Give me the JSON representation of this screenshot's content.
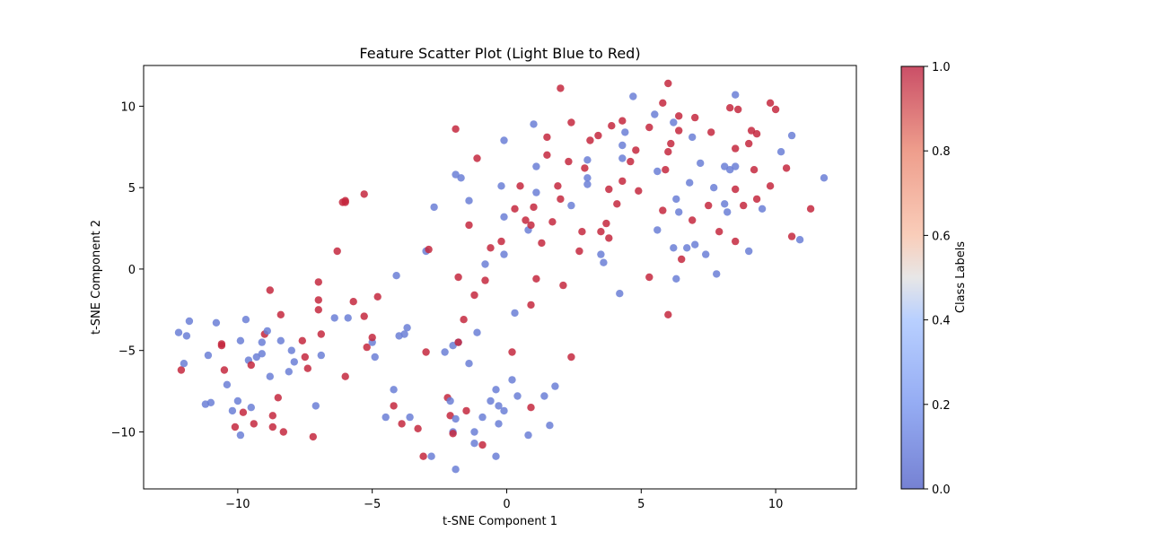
{
  "chart_data": {
    "type": "scatter",
    "title": "Feature Scatter Plot (Light Blue to Red)",
    "xlabel": "t-SNE Component 1",
    "ylabel": "t-SNE Component 2",
    "xlim": [
      -13.5,
      13
    ],
    "ylim": [
      -13.5,
      12.5
    ],
    "xticks": [
      -10,
      -5,
      0,
      5,
      10
    ],
    "yticks": [
      -10,
      -5,
      0,
      5,
      10
    ],
    "xtick_labels": [
      "−10",
      "−5",
      "0",
      "5",
      "10"
    ],
    "ytick_labels": [
      "−10",
      "−5",
      "0",
      "5",
      "10"
    ],
    "grid": false,
    "colormap": "coolwarm",
    "colors": {
      "class_0": "#6b7fd6",
      "class_1": "#c4283e"
    },
    "colorbar": {
      "label": "Class Labels",
      "range": [
        0.0,
        1.0
      ],
      "ticks": [
        "0.0",
        "0.2",
        "0.4",
        "0.6",
        "0.8",
        "1.0"
      ]
    },
    "points": [
      [
        -12.2,
        -3.9,
        0
      ],
      [
        -12.1,
        -6.2,
        1
      ],
      [
        -12.0,
        -5.8,
        0
      ],
      [
        -11.9,
        -4.1,
        0
      ],
      [
        -11.8,
        -3.2,
        0
      ],
      [
        -11.2,
        -8.3,
        0
      ],
      [
        -11.1,
        -5.3,
        0
      ],
      [
        -11.0,
        -8.2,
        0
      ],
      [
        -10.8,
        -3.3,
        0
      ],
      [
        -10.6,
        -4.7,
        1
      ],
      [
        -10.6,
        -4.6,
        1
      ],
      [
        -10.5,
        -6.2,
        1
      ],
      [
        -10.4,
        -7.1,
        0
      ],
      [
        -10.2,
        -8.7,
        0
      ],
      [
        -10.1,
        -9.7,
        1
      ],
      [
        -10.0,
        -8.1,
        0
      ],
      [
        -9.9,
        -4.4,
        0
      ],
      [
        -9.9,
        -10.2,
        0
      ],
      [
        -9.8,
        -8.8,
        1
      ],
      [
        -9.7,
        -3.1,
        0
      ],
      [
        -9.6,
        -5.6,
        0
      ],
      [
        -9.5,
        -8.5,
        0
      ],
      [
        -9.5,
        -5.9,
        1
      ],
      [
        -9.4,
        -9.5,
        1
      ],
      [
        -9.3,
        -5.4,
        0
      ],
      [
        -9.1,
        -5.2,
        0
      ],
      [
        -9.1,
        -4.5,
        0
      ],
      [
        -9.0,
        -4.0,
        1
      ],
      [
        -8.9,
        -3.8,
        0
      ],
      [
        -8.8,
        -1.3,
        1
      ],
      [
        -8.8,
        -6.6,
        0
      ],
      [
        -8.7,
        -9.0,
        1
      ],
      [
        -8.7,
        -9.7,
        1
      ],
      [
        -8.5,
        -7.9,
        1
      ],
      [
        -8.4,
        -4.4,
        0
      ],
      [
        -8.4,
        -2.8,
        1
      ],
      [
        -8.3,
        -10.0,
        1
      ],
      [
        -8.1,
        -6.3,
        0
      ],
      [
        -8.0,
        -5.0,
        0
      ],
      [
        -7.9,
        -5.7,
        0
      ],
      [
        -7.6,
        -4.4,
        1
      ],
      [
        -7.5,
        -5.4,
        1
      ],
      [
        -7.4,
        -6.1,
        1
      ],
      [
        -7.2,
        -10.3,
        1
      ],
      [
        -7.1,
        -8.4,
        0
      ],
      [
        -7.0,
        -1.9,
        1
      ],
      [
        -7.0,
        -0.8,
        1
      ],
      [
        -7.0,
        -2.5,
        1
      ],
      [
        -6.9,
        -4.0,
        1
      ],
      [
        -6.9,
        -5.3,
        0
      ],
      [
        -6.4,
        -3.0,
        0
      ],
      [
        -6.3,
        1.1,
        1
      ],
      [
        -6.1,
        4.1,
        1
      ],
      [
        -6.0,
        4.1,
        1
      ],
      [
        -6.0,
        4.2,
        1
      ],
      [
        -6.0,
        -6.6,
        1
      ],
      [
        -5.9,
        -3.0,
        0
      ],
      [
        -5.7,
        -2.0,
        1
      ],
      [
        -5.3,
        4.6,
        1
      ],
      [
        -5.3,
        -2.9,
        1
      ],
      [
        -5.2,
        -4.8,
        1
      ],
      [
        -5.0,
        -4.5,
        0
      ],
      [
        -5.0,
        -4.2,
        1
      ],
      [
        -4.9,
        -5.4,
        0
      ],
      [
        -4.8,
        -1.7,
        1
      ],
      [
        -4.5,
        -9.1,
        0
      ],
      [
        -4.2,
        -7.4,
        0
      ],
      [
        -4.2,
        -8.4,
        1
      ],
      [
        -4.1,
        -0.4,
        0
      ],
      [
        -4.0,
        -4.1,
        0
      ],
      [
        -3.9,
        -9.5,
        1
      ],
      [
        -3.8,
        -4.0,
        0
      ],
      [
        -3.7,
        -3.6,
        0
      ],
      [
        -3.6,
        -9.1,
        0
      ],
      [
        -3.3,
        -9.8,
        1
      ],
      [
        -3.1,
        -11.5,
        1
      ],
      [
        -3.0,
        1.1,
        0
      ],
      [
        -3.0,
        -5.1,
        1
      ],
      [
        -2.9,
        1.2,
        1
      ],
      [
        -2.8,
        -11.5,
        0
      ],
      [
        -2.7,
        3.8,
        0
      ],
      [
        -2.3,
        -5.1,
        0
      ],
      [
        -2.2,
        -7.9,
        1
      ],
      [
        -2.1,
        -8.1,
        0
      ],
      [
        -2.1,
        -9.0,
        1
      ],
      [
        -2.0,
        -10.0,
        0
      ],
      [
        -2.0,
        -10.1,
        1
      ],
      [
        -2.0,
        -4.7,
        0
      ],
      [
        -1.9,
        5.8,
        0
      ],
      [
        -1.9,
        8.6,
        1
      ],
      [
        -1.9,
        -9.2,
        0
      ],
      [
        -1.9,
        -12.3,
        0
      ],
      [
        -1.8,
        -4.5,
        0
      ],
      [
        -1.8,
        -4.5,
        1
      ],
      [
        -1.8,
        -0.5,
        1
      ],
      [
        -1.7,
        5.6,
        0
      ],
      [
        -1.6,
        -3.1,
        1
      ],
      [
        -1.5,
        -8.7,
        1
      ],
      [
        -1.4,
        4.2,
        0
      ],
      [
        -1.4,
        -5.8,
        0
      ],
      [
        -1.4,
        2.7,
        1
      ],
      [
        -1.2,
        -10.0,
        0
      ],
      [
        -1.2,
        -10.7,
        0
      ],
      [
        -1.2,
        -1.6,
        1
      ],
      [
        -1.1,
        -3.9,
        0
      ],
      [
        -1.1,
        6.8,
        1
      ],
      [
        -0.9,
        -9.1,
        0
      ],
      [
        -0.9,
        -10.8,
        1
      ],
      [
        -0.8,
        -0.7,
        1
      ],
      [
        -0.8,
        0.3,
        0
      ],
      [
        -0.6,
        -8.1,
        0
      ],
      [
        -0.6,
        1.3,
        1
      ],
      [
        -0.4,
        -7.4,
        0
      ],
      [
        -0.4,
        -11.5,
        0
      ],
      [
        -0.3,
        -8.4,
        0
      ],
      [
        -0.3,
        -9.5,
        0
      ],
      [
        -0.2,
        5.1,
        0
      ],
      [
        -0.2,
        1.7,
        1
      ],
      [
        -0.1,
        7.9,
        0
      ],
      [
        -0.1,
        3.2,
        0
      ],
      [
        -0.1,
        -8.7,
        0
      ],
      [
        -0.1,
        0.9,
        0
      ],
      [
        0.2,
        -6.8,
        0
      ],
      [
        0.2,
        -5.1,
        1
      ],
      [
        0.3,
        3.7,
        1
      ],
      [
        0.3,
        -2.7,
        0
      ],
      [
        0.4,
        -7.8,
        0
      ],
      [
        0.5,
        5.1,
        1
      ],
      [
        0.7,
        3.0,
        1
      ],
      [
        0.8,
        2.4,
        0
      ],
      [
        0.8,
        -10.2,
        0
      ],
      [
        0.9,
        2.7,
        1
      ],
      [
        0.9,
        -2.2,
        1
      ],
      [
        0.9,
        -8.5,
        1
      ],
      [
        1.0,
        8.9,
        0
      ],
      [
        1.0,
        3.8,
        1
      ],
      [
        1.1,
        6.3,
        0
      ],
      [
        1.1,
        4.7,
        0
      ],
      [
        1.1,
        -0.6,
        1
      ],
      [
        1.3,
        1.6,
        1
      ],
      [
        1.4,
        -7.8,
        0
      ],
      [
        1.5,
        7.0,
        1
      ],
      [
        1.5,
        8.1,
        1
      ],
      [
        1.6,
        -9.6,
        0
      ],
      [
        1.7,
        2.9,
        1
      ],
      [
        1.8,
        -7.2,
        0
      ],
      [
        1.9,
        5.1,
        1
      ],
      [
        2.0,
        4.3,
        1
      ],
      [
        2.0,
        11.1,
        1
      ],
      [
        2.1,
        -1.0,
        1
      ],
      [
        2.3,
        6.6,
        1
      ],
      [
        2.4,
        9.0,
        1
      ],
      [
        2.4,
        3.9,
        0
      ],
      [
        2.4,
        -5.4,
        1
      ],
      [
        2.7,
        1.1,
        1
      ],
      [
        2.8,
        2.3,
        1
      ],
      [
        2.9,
        6.2,
        1
      ],
      [
        3.0,
        5.6,
        0
      ],
      [
        3.0,
        5.2,
        0
      ],
      [
        3.0,
        6.7,
        0
      ],
      [
        3.1,
        7.9,
        1
      ],
      [
        3.4,
        8.2,
        1
      ],
      [
        3.5,
        0.9,
        0
      ],
      [
        3.5,
        2.3,
        1
      ],
      [
        3.6,
        0.4,
        0
      ],
      [
        3.7,
        2.8,
        1
      ],
      [
        3.8,
        4.9,
        1
      ],
      [
        3.8,
        1.9,
        1
      ],
      [
        3.9,
        8.8,
        1
      ],
      [
        4.1,
        4.0,
        1
      ],
      [
        4.2,
        -1.5,
        0
      ],
      [
        4.3,
        6.8,
        0
      ],
      [
        4.3,
        5.4,
        1
      ],
      [
        4.3,
        9.1,
        1
      ],
      [
        4.3,
        7.6,
        0
      ],
      [
        4.4,
        8.4,
        0
      ],
      [
        4.6,
        6.6,
        1
      ],
      [
        4.7,
        10.6,
        0
      ],
      [
        4.8,
        7.3,
        1
      ],
      [
        4.9,
        4.8,
        1
      ],
      [
        5.3,
        -0.5,
        1
      ],
      [
        5.3,
        8.7,
        1
      ],
      [
        5.5,
        9.5,
        0
      ],
      [
        5.6,
        6.0,
        0
      ],
      [
        5.6,
        2.4,
        0
      ],
      [
        5.8,
        10.2,
        1
      ],
      [
        5.8,
        3.6,
        1
      ],
      [
        5.9,
        6.1,
        1
      ],
      [
        6.0,
        11.4,
        1
      ],
      [
        6.0,
        7.2,
        1
      ],
      [
        6.0,
        -2.8,
        1
      ],
      [
        6.1,
        7.7,
        1
      ],
      [
        6.2,
        9.0,
        0
      ],
      [
        6.2,
        1.3,
        0
      ],
      [
        6.3,
        -0.6,
        0
      ],
      [
        6.3,
        4.3,
        0
      ],
      [
        6.4,
        8.5,
        1
      ],
      [
        6.4,
        9.4,
        1
      ],
      [
        6.4,
        3.5,
        0
      ],
      [
        6.5,
        0.6,
        1
      ],
      [
        6.7,
        1.3,
        0
      ],
      [
        6.8,
        5.3,
        0
      ],
      [
        6.9,
        3.0,
        1
      ],
      [
        6.9,
        8.1,
        0
      ],
      [
        7.0,
        9.3,
        1
      ],
      [
        7.0,
        1.5,
        0
      ],
      [
        7.2,
        6.5,
        0
      ],
      [
        7.4,
        0.9,
        0
      ],
      [
        7.5,
        3.9,
        1
      ],
      [
        7.6,
        8.4,
        1
      ],
      [
        7.7,
        5.0,
        0
      ],
      [
        7.8,
        -0.3,
        0
      ],
      [
        7.9,
        2.3,
        1
      ],
      [
        8.1,
        4.0,
        0
      ],
      [
        8.1,
        6.3,
        0
      ],
      [
        8.2,
        3.5,
        0
      ],
      [
        8.3,
        9.9,
        1
      ],
      [
        8.3,
        6.1,
        0
      ],
      [
        8.5,
        10.7,
        0
      ],
      [
        8.5,
        7.4,
        1
      ],
      [
        8.5,
        6.3,
        0
      ],
      [
        8.5,
        4.9,
        1
      ],
      [
        8.5,
        1.7,
        1
      ],
      [
        8.6,
        9.8,
        1
      ],
      [
        8.8,
        3.9,
        1
      ],
      [
        9.0,
        7.7,
        1
      ],
      [
        9.0,
        1.1,
        0
      ],
      [
        9.1,
        8.5,
        1
      ],
      [
        9.2,
        6.1,
        1
      ],
      [
        9.3,
        4.3,
        1
      ],
      [
        9.3,
        8.3,
        1
      ],
      [
        9.5,
        3.7,
        0
      ],
      [
        9.8,
        10.2,
        1
      ],
      [
        9.8,
        5.1,
        1
      ],
      [
        10.0,
        9.8,
        1
      ],
      [
        10.2,
        7.2,
        0
      ],
      [
        10.4,
        6.2,
        1
      ],
      [
        10.6,
        8.2,
        0
      ],
      [
        10.6,
        2.0,
        1
      ],
      [
        10.9,
        1.8,
        0
      ],
      [
        11.3,
        3.7,
        1
      ],
      [
        11.8,
        5.6,
        0
      ]
    ]
  }
}
